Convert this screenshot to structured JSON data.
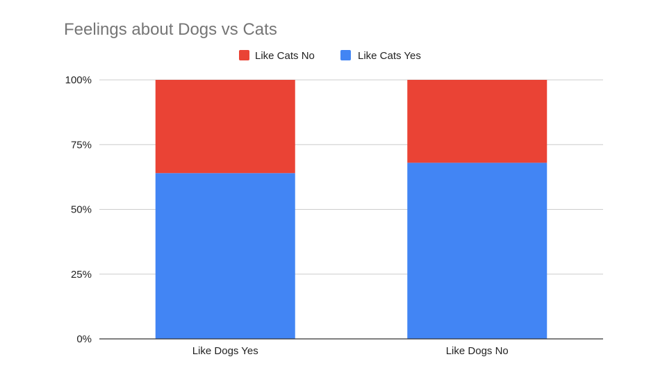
{
  "chart_data": {
    "type": "bar",
    "stacked": true,
    "percent": true,
    "title": "Feelings about Dogs vs Cats",
    "xlabel": "",
    "ylabel": "",
    "categories": [
      "Like Dogs Yes",
      "Like Dogs No"
    ],
    "series": [
      {
        "name": "Like Cats Yes",
        "values": [
          64,
          68
        ],
        "color": "#4285f4"
      },
      {
        "name": "Like Cats No",
        "values": [
          36,
          32
        ],
        "color": "#ea4335"
      }
    ],
    "legend_order": [
      "Like Cats No",
      "Like Cats Yes"
    ],
    "ylim": [
      0,
      100
    ],
    "yticks": [
      "0%",
      "25%",
      "50%",
      "75%",
      "100%"
    ],
    "legend_position": "top",
    "grid": true,
    "gridline_color": "#cccccc",
    "axis_color": "#333333"
  }
}
